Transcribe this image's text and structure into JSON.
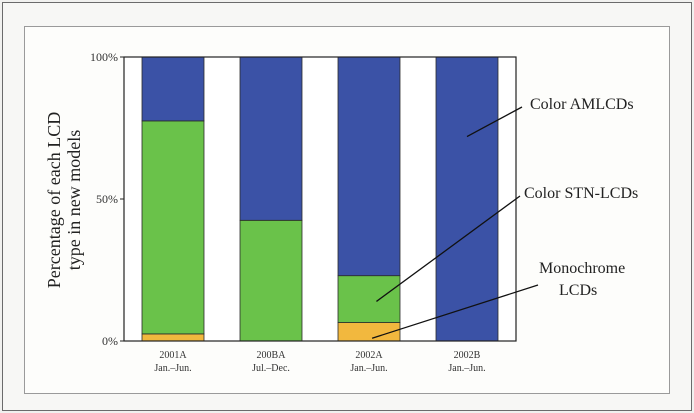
{
  "chart_data": {
    "type": "bar",
    "stacked": true,
    "percent_stacked": true,
    "categories": [
      {
        "label": "2001A",
        "sublabel": "Jan.–Jun."
      },
      {
        "label": "200BA",
        "sublabel": "Jul.–Dec."
      },
      {
        "label": "2002A",
        "sublabel": "Jan.–Jun."
      },
      {
        "label": "2002B",
        "sublabel": "Jan.–Jun."
      }
    ],
    "series": [
      {
        "name": "Monochrome LCDs",
        "color": "#f2b83e",
        "values": [
          2.5,
          0,
          6.5,
          0
        ]
      },
      {
        "name": "Color STN-LCDs",
        "color": "#6ac24a",
        "values": [
          75,
          42.5,
          16.5,
          0
        ]
      },
      {
        "name": "Color AMLCDs",
        "color": "#3b52a6",
        "values": [
          22.5,
          57.5,
          77,
          100
        ]
      }
    ],
    "ylim": [
      0,
      100
    ],
    "yticks": [
      {
        "value": 0,
        "label": "0%"
      },
      {
        "value": 50,
        "label": "50%"
      },
      {
        "value": 100,
        "label": "100%"
      }
    ],
    "ylabel_lines": [
      "Percentage of each LCD",
      "type in new models"
    ],
    "xlabel": "",
    "title": "",
    "grid": false,
    "annotations": [
      {
        "lines": [
          "Color AMLCDs"
        ],
        "series": "Color AMLCDs",
        "category_index": 3
      },
      {
        "lines": [
          "Color STN-LCDs"
        ],
        "series": "Color STN-LCDs",
        "category_index": 2
      },
      {
        "lines": [
          "Monochrome",
          "LCDs"
        ],
        "series": "Monochrome LCDs",
        "category_index": 2
      }
    ]
  }
}
